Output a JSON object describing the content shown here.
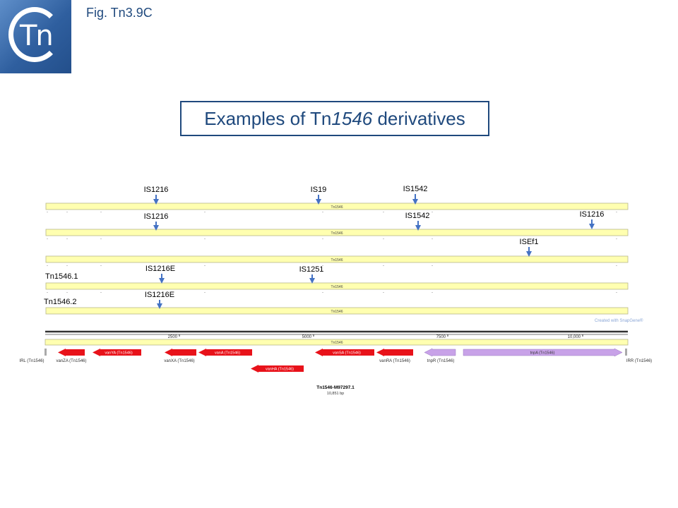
{
  "figure_label": "Fig. Tn3.9C",
  "logo": {
    "letters": "Tn"
  },
  "title": {
    "prefix": "Examples of  Tn",
    "italic": "1546",
    "suffix": " derivatives"
  },
  "tracks": [
    {
      "bar_label": "Tn1546",
      "row_label": "",
      "insertions": [
        "IS1216",
        "IS19",
        "IS1542"
      ]
    },
    {
      "bar_label": "Tn1546",
      "row_label": "",
      "insertions": [
        "IS1216",
        "IS1542",
        "IS1216"
      ]
    },
    {
      "bar_label": "Tn1546",
      "row_label": "",
      "insertions": [
        "ISEf1"
      ]
    },
    {
      "bar_label": "Tn1546",
      "row_label": "Tn1546.1",
      "insertions": [
        "IS1216E",
        "IS1251"
      ]
    },
    {
      "bar_label": "Tn1546",
      "row_label": "Tn1546.2",
      "insertions": [
        "IS1216E"
      ]
    }
  ],
  "map": {
    "ruler_ticks": [
      "2500",
      "5000",
      "7500",
      "10,000"
    ],
    "bar_label": "Tn1546",
    "features": [
      {
        "name": "IRL (Tn1546)",
        "kind": "repeat",
        "strand": "none"
      },
      {
        "name": "vanZA (Tn1546)",
        "kind": "gene",
        "strand": "reverse",
        "color": "#e8121a"
      },
      {
        "name": "vanYA (Tn1546)",
        "kind": "gene",
        "strand": "reverse",
        "color": "#e8121a"
      },
      {
        "name": "vanXA (Tn1546)",
        "kind": "gene",
        "strand": "reverse",
        "color": "#e8121a"
      },
      {
        "name": "vanA (Tn1546)",
        "kind": "gene",
        "strand": "reverse",
        "color": "#e8121a"
      },
      {
        "name": "vanHA (Tn1546)",
        "kind": "gene",
        "strand": "reverse",
        "color": "#e8121a"
      },
      {
        "name": "vanSA (Tn1546)",
        "kind": "gene",
        "strand": "reverse",
        "color": "#e8121a"
      },
      {
        "name": "vanRA (Tn1546)",
        "kind": "gene",
        "strand": "reverse",
        "color": "#e8121a"
      },
      {
        "name": "tnpR (Tn1546)",
        "kind": "gene",
        "strand": "reverse",
        "color": "#c8a2e8"
      },
      {
        "name": "tnpA (Tn1546)",
        "kind": "gene",
        "strand": "forward",
        "color": "#c8a2e8"
      },
      {
        "name": "IRR (Tn1546)",
        "kind": "repeat",
        "strand": "none"
      }
    ],
    "sequence_name": "Tn1546-M97297.1",
    "sequence_length": "10,851 bp",
    "watermark": "Created with SnapGene®"
  },
  "colors": {
    "accent": "#1f497d",
    "bar_fill": "#ffffb0",
    "arrow": "#4472c4",
    "van_genes": "#e8121a",
    "tnp_genes": "#c8a2e8"
  }
}
